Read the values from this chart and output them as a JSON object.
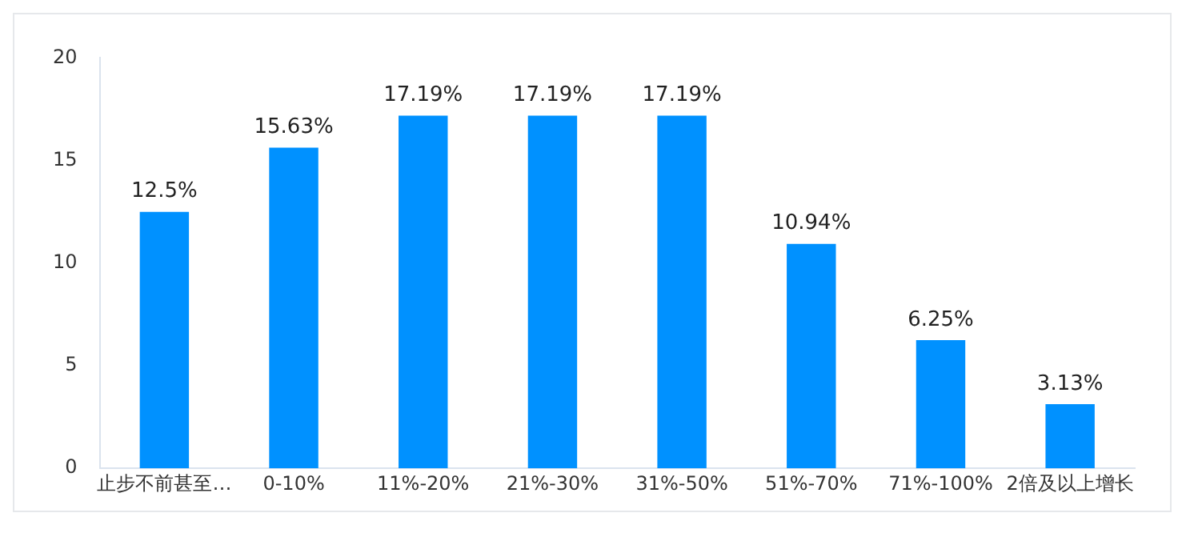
{
  "chart_data": {
    "type": "bar",
    "categories": [
      "止步不前甚至…",
      "0-10%",
      "11%-20%",
      "21%-30%",
      "31%-50%",
      "51%-70%",
      "71%-100%",
      "2倍及以上增长"
    ],
    "values": [
      12.5,
      15.63,
      17.19,
      17.19,
      17.19,
      10.94,
      6.25,
      3.13
    ],
    "value_labels": [
      "12.5%",
      "15.63%",
      "17.19%",
      "17.19%",
      "17.19%",
      "10.94%",
      "6.25%",
      "3.13%"
    ],
    "color": "#0091ff",
    "ylim": [
      0,
      20
    ],
    "yticks": [
      0,
      5,
      10,
      15,
      20
    ],
    "grid": false,
    "legend": false
  }
}
